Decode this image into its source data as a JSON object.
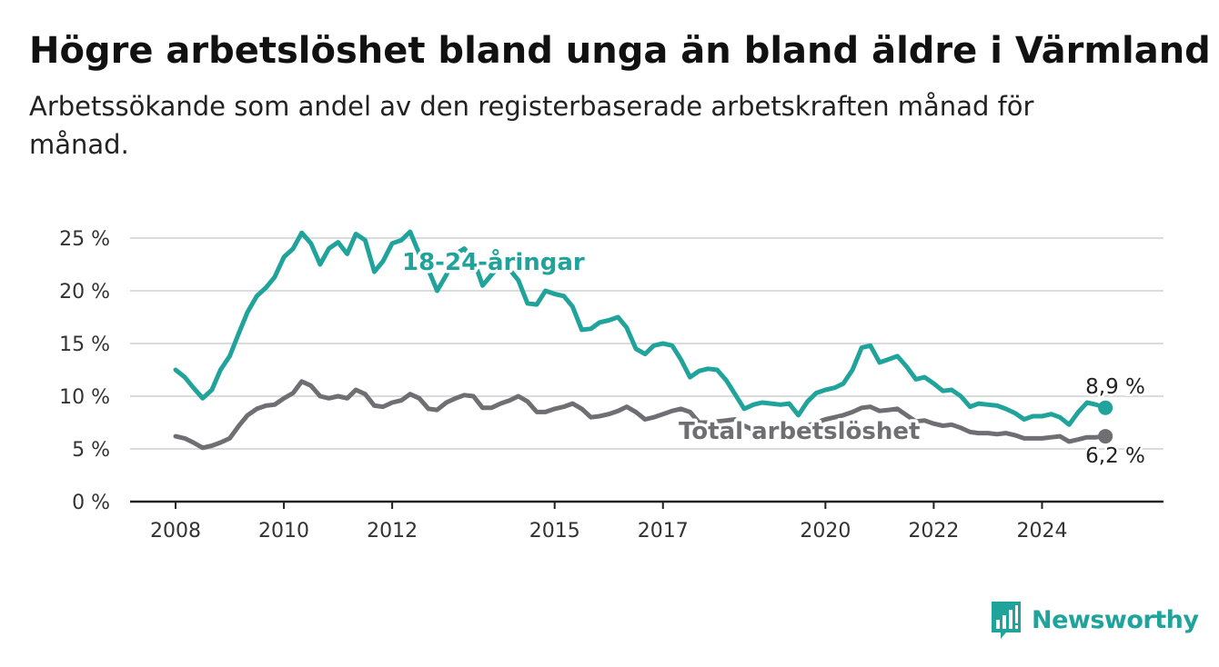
{
  "header": {
    "title": "Högre arbetslöshet bland unga än bland äldre i Värmland",
    "subtitle": "Arbetssökande som andel av den registerbaserade arbetskraften månad för månad."
  },
  "brand": {
    "name": "Newsworthy",
    "color": "#1fa39a"
  },
  "chart_data": {
    "type": "line",
    "title": "Högre arbetslöshet bland unga än bland äldre i Värmland",
    "subtitle": "Arbetssökande som andel av den registerbaserade arbetskraften månad för månad.",
    "xlabel": "",
    "ylabel": "",
    "xlim": [
      2008.0,
      2025.8
    ],
    "ylim": [
      0,
      25
    ],
    "x_ticks": [
      2008,
      2010,
      2012,
      2015,
      2017,
      2020,
      2022,
      2024
    ],
    "x_tick_labels": [
      "2008",
      "2010",
      "2012",
      "2015",
      "2017",
      "2020",
      "2022",
      "2024"
    ],
    "y_ticks": [
      0,
      5,
      10,
      15,
      20,
      25
    ],
    "y_tick_labels": [
      "0 %",
      "5 %",
      "10 %",
      "15 %",
      "20 %",
      "25 %"
    ],
    "grid": true,
    "legend": "inline labels",
    "series": [
      {
        "name": "18-24-åringar",
        "color": "#1fa39a",
        "end_label": "8,9 %",
        "points": [
          [
            2008.0,
            12.5
          ],
          [
            2008.17,
            11.8
          ],
          [
            2008.33,
            10.8
          ],
          [
            2008.5,
            9.8
          ],
          [
            2008.67,
            10.6
          ],
          [
            2008.83,
            12.5
          ],
          [
            2009.0,
            13.8
          ],
          [
            2009.17,
            16.0
          ],
          [
            2009.33,
            18.0
          ],
          [
            2009.5,
            19.5
          ],
          [
            2009.67,
            20.3
          ],
          [
            2009.83,
            21.3
          ],
          [
            2010.0,
            23.2
          ],
          [
            2010.17,
            24.0
          ],
          [
            2010.33,
            25.5
          ],
          [
            2010.5,
            24.5
          ],
          [
            2010.67,
            22.5
          ],
          [
            2010.83,
            24.0
          ],
          [
            2011.0,
            24.6
          ],
          [
            2011.17,
            23.5
          ],
          [
            2011.33,
            25.4
          ],
          [
            2011.5,
            24.8
          ],
          [
            2011.67,
            21.8
          ],
          [
            2011.83,
            22.8
          ],
          [
            2012.0,
            24.5
          ],
          [
            2012.17,
            24.8
          ],
          [
            2012.33,
            25.6
          ],
          [
            2012.5,
            23.5
          ],
          [
            2012.67,
            22.0
          ],
          [
            2012.83,
            20.0
          ],
          [
            2013.0,
            21.5
          ],
          [
            2013.17,
            23.5
          ],
          [
            2013.33,
            24.0
          ],
          [
            2013.5,
            23.0
          ],
          [
            2013.67,
            20.5
          ],
          [
            2013.83,
            21.5
          ],
          [
            2014.0,
            22.5
          ],
          [
            2014.17,
            22.0
          ],
          [
            2014.33,
            21.0
          ],
          [
            2014.5,
            18.8
          ],
          [
            2014.67,
            18.7
          ],
          [
            2014.83,
            20.0
          ],
          [
            2015.0,
            19.7
          ],
          [
            2015.17,
            19.5
          ],
          [
            2015.33,
            18.5
          ],
          [
            2015.5,
            16.3
          ],
          [
            2015.67,
            16.4
          ],
          [
            2015.83,
            17.0
          ],
          [
            2016.0,
            17.2
          ],
          [
            2016.17,
            17.5
          ],
          [
            2016.33,
            16.5
          ],
          [
            2016.5,
            14.5
          ],
          [
            2016.67,
            14.0
          ],
          [
            2016.83,
            14.8
          ],
          [
            2017.0,
            15.0
          ],
          [
            2017.17,
            14.8
          ],
          [
            2017.33,
            13.5
          ],
          [
            2017.5,
            11.8
          ],
          [
            2017.67,
            12.4
          ],
          [
            2017.83,
            12.6
          ],
          [
            2018.0,
            12.5
          ],
          [
            2018.17,
            11.5
          ],
          [
            2018.33,
            10.2
          ],
          [
            2018.5,
            8.8
          ],
          [
            2018.67,
            9.2
          ],
          [
            2018.83,
            9.4
          ],
          [
            2019.0,
            9.3
          ],
          [
            2019.17,
            9.2
          ],
          [
            2019.33,
            9.3
          ],
          [
            2019.5,
            8.2
          ],
          [
            2019.67,
            9.5
          ],
          [
            2019.83,
            10.3
          ],
          [
            2020.0,
            10.6
          ],
          [
            2020.17,
            10.8
          ],
          [
            2020.33,
            11.2
          ],
          [
            2020.5,
            12.5
          ],
          [
            2020.67,
            14.6
          ],
          [
            2020.83,
            14.8
          ],
          [
            2021.0,
            13.2
          ],
          [
            2021.17,
            13.5
          ],
          [
            2021.33,
            13.8
          ],
          [
            2021.5,
            12.8
          ],
          [
            2021.67,
            11.6
          ],
          [
            2021.83,
            11.8
          ],
          [
            2022.0,
            11.2
          ],
          [
            2022.17,
            10.5
          ],
          [
            2022.33,
            10.6
          ],
          [
            2022.5,
            10.0
          ],
          [
            2022.67,
            9.0
          ],
          [
            2022.83,
            9.3
          ],
          [
            2023.0,
            9.2
          ],
          [
            2023.17,
            9.1
          ],
          [
            2023.33,
            8.8
          ],
          [
            2023.5,
            8.4
          ],
          [
            2023.67,
            7.8
          ],
          [
            2023.83,
            8.1
          ],
          [
            2024.0,
            8.1
          ],
          [
            2024.17,
            8.3
          ],
          [
            2024.33,
            8.0
          ],
          [
            2024.5,
            7.3
          ],
          [
            2024.67,
            8.5
          ],
          [
            2024.83,
            9.4
          ],
          [
            2025.0,
            9.2
          ],
          [
            2025.17,
            8.9
          ]
        ]
      },
      {
        "name": "Total arbetslöshet",
        "color": "#6e6e73",
        "end_label": "6,2 %",
        "points": [
          [
            2008.0,
            6.2
          ],
          [
            2008.17,
            6.0
          ],
          [
            2008.33,
            5.6
          ],
          [
            2008.5,
            5.1
          ],
          [
            2008.67,
            5.3
          ],
          [
            2008.83,
            5.6
          ],
          [
            2009.0,
            6.0
          ],
          [
            2009.17,
            7.2
          ],
          [
            2009.33,
            8.2
          ],
          [
            2009.5,
            8.8
          ],
          [
            2009.67,
            9.1
          ],
          [
            2009.83,
            9.2
          ],
          [
            2010.0,
            9.8
          ],
          [
            2010.17,
            10.3
          ],
          [
            2010.33,
            11.4
          ],
          [
            2010.5,
            11.0
          ],
          [
            2010.67,
            10.0
          ],
          [
            2010.83,
            9.8
          ],
          [
            2011.0,
            10.0
          ],
          [
            2011.17,
            9.8
          ],
          [
            2011.33,
            10.6
          ],
          [
            2011.5,
            10.2
          ],
          [
            2011.67,
            9.1
          ],
          [
            2011.83,
            9.0
          ],
          [
            2012.0,
            9.4
          ],
          [
            2012.17,
            9.6
          ],
          [
            2012.33,
            10.2
          ],
          [
            2012.5,
            9.8
          ],
          [
            2012.67,
            8.8
          ],
          [
            2012.83,
            8.7
          ],
          [
            2013.0,
            9.4
          ],
          [
            2013.17,
            9.8
          ],
          [
            2013.33,
            10.1
          ],
          [
            2013.5,
            10.0
          ],
          [
            2013.67,
            8.9
          ],
          [
            2013.83,
            8.9
          ],
          [
            2014.0,
            9.3
          ],
          [
            2014.17,
            9.6
          ],
          [
            2014.33,
            10.0
          ],
          [
            2014.5,
            9.5
          ],
          [
            2014.67,
            8.5
          ],
          [
            2014.83,
            8.5
          ],
          [
            2015.0,
            8.8
          ],
          [
            2015.17,
            9.0
          ],
          [
            2015.33,
            9.3
          ],
          [
            2015.5,
            8.8
          ],
          [
            2015.67,
            8.0
          ],
          [
            2015.83,
            8.1
          ],
          [
            2016.0,
            8.3
          ],
          [
            2016.17,
            8.6
          ],
          [
            2016.33,
            9.0
          ],
          [
            2016.5,
            8.5
          ],
          [
            2016.67,
            7.8
          ],
          [
            2016.83,
            8.0
          ],
          [
            2017.0,
            8.3
          ],
          [
            2017.17,
            8.6
          ],
          [
            2017.33,
            8.8
          ],
          [
            2017.5,
            8.5
          ],
          [
            2017.67,
            7.5
          ],
          [
            2017.83,
            7.5
          ],
          [
            2018.0,
            7.6
          ],
          [
            2018.17,
            7.7
          ],
          [
            2018.33,
            7.8
          ],
          [
            2018.5,
            7.2
          ],
          [
            2018.67,
            6.8
          ],
          [
            2018.83,
            6.9
          ],
          [
            2019.0,
            7.0
          ],
          [
            2019.17,
            7.0
          ],
          [
            2019.33,
            7.1
          ],
          [
            2019.5,
            6.8
          ],
          [
            2019.67,
            7.2
          ],
          [
            2019.83,
            7.5
          ],
          [
            2020.0,
            7.8
          ],
          [
            2020.17,
            8.0
          ],
          [
            2020.33,
            8.2
          ],
          [
            2020.5,
            8.5
          ],
          [
            2020.67,
            8.9
          ],
          [
            2020.83,
            9.0
          ],
          [
            2021.0,
            8.6
          ],
          [
            2021.17,
            8.7
          ],
          [
            2021.33,
            8.8
          ],
          [
            2021.5,
            8.2
          ],
          [
            2021.67,
            7.6
          ],
          [
            2021.83,
            7.7
          ],
          [
            2022.0,
            7.4
          ],
          [
            2022.17,
            7.2
          ],
          [
            2022.33,
            7.3
          ],
          [
            2022.5,
            7.0
          ],
          [
            2022.67,
            6.6
          ],
          [
            2022.83,
            6.5
          ],
          [
            2023.0,
            6.5
          ],
          [
            2023.17,
            6.4
          ],
          [
            2023.33,
            6.5
          ],
          [
            2023.5,
            6.3
          ],
          [
            2023.67,
            6.0
          ],
          [
            2023.83,
            6.0
          ],
          [
            2024.0,
            6.0
          ],
          [
            2024.17,
            6.1
          ],
          [
            2024.33,
            6.2
          ],
          [
            2024.5,
            5.7
          ],
          [
            2024.67,
            5.9
          ],
          [
            2024.83,
            6.1
          ],
          [
            2025.0,
            6.1
          ],
          [
            2025.17,
            6.2
          ]
        ]
      }
    ]
  }
}
